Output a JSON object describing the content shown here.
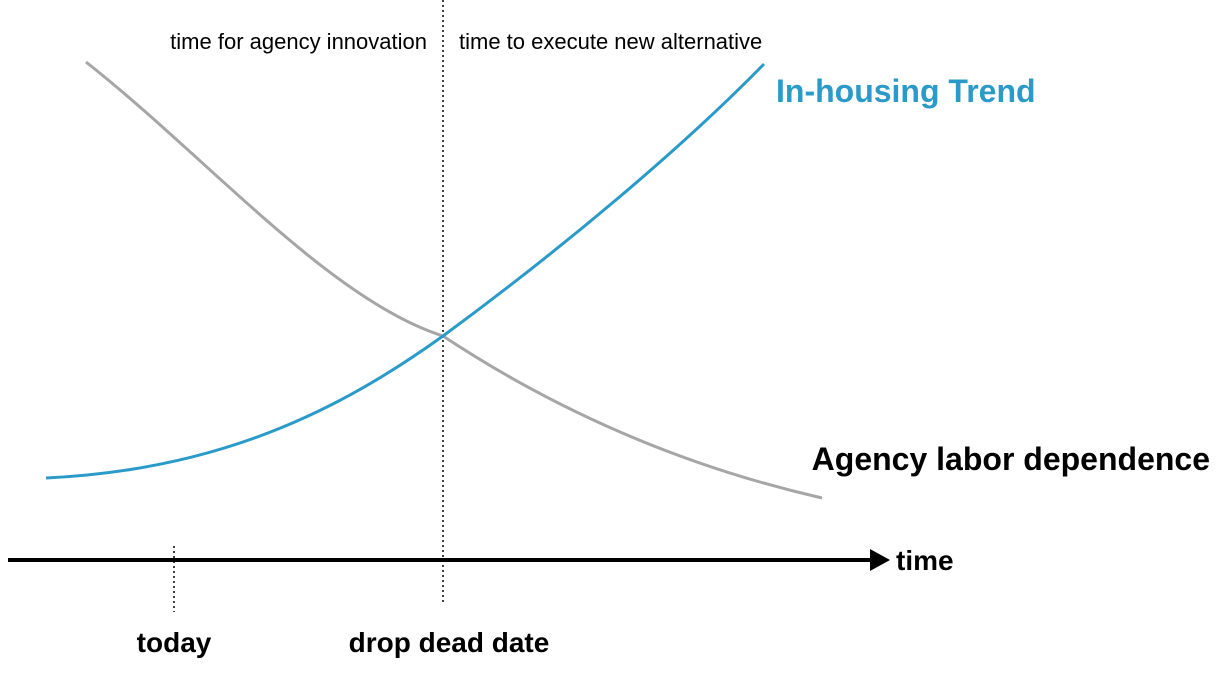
{
  "phase_labels": {
    "before": "time for agency innovation",
    "after": "time to execute new alternative"
  },
  "series": {
    "inhousing": {
      "label": "In-housing Trend",
      "color": "#2a9ac9"
    },
    "agency": {
      "label": "Agency labor dependence",
      "color": "#a6a6a6"
    }
  },
  "axis": {
    "label": "time",
    "markers": {
      "today": "today",
      "deadline": "drop dead date"
    }
  },
  "colors": {
    "axis": "#000000",
    "text": "#000000"
  }
}
